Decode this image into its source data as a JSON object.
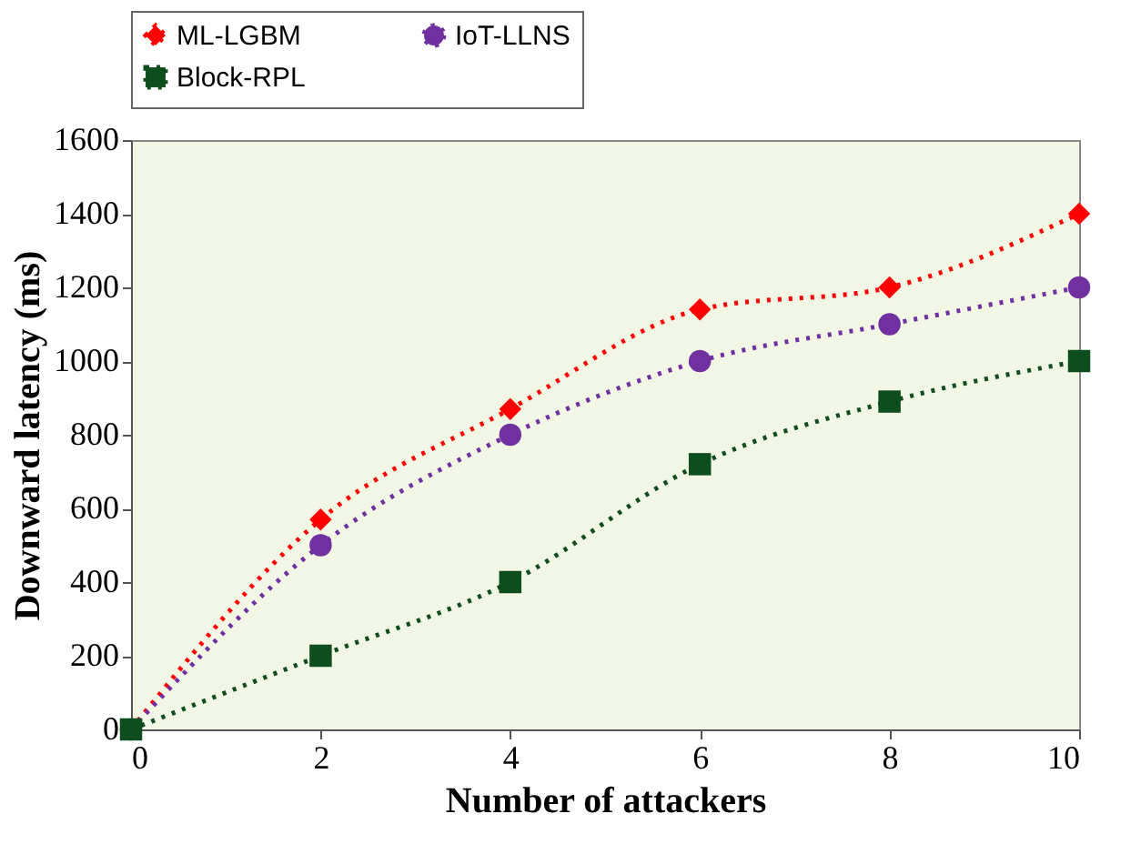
{
  "chart_data": {
    "type": "line",
    "xlabel": "Number of attackers",
    "ylabel": "Downward latency (ms)",
    "x": [
      0,
      2,
      4,
      6,
      8,
      10
    ],
    "series": [
      {
        "name": "ML-LGBM",
        "color": "#ff0000",
        "marker": "diamond",
        "values": [
          0,
          570,
          870,
          1140,
          1200,
          1400
        ]
      },
      {
        "name": "IoT-LLNS",
        "color": "#7030a0",
        "marker": "circle",
        "values": [
          0,
          500,
          800,
          1000,
          1100,
          1200
        ]
      },
      {
        "name": "Block-RPL",
        "color": "#0d4d1e",
        "marker": "square",
        "values": [
          0,
          200,
          400,
          720,
          890,
          1000
        ]
      }
    ],
    "xlim": [
      0,
      10
    ],
    "xticks": [
      0,
      2,
      4,
      6,
      8,
      10
    ],
    "ylim": [
      0,
      1600
    ],
    "yticks": [
      0,
      200,
      400,
      600,
      800,
      1000,
      1200,
      1400,
      1600
    ],
    "grid": false,
    "legend": "top",
    "line_style": "dotted"
  }
}
